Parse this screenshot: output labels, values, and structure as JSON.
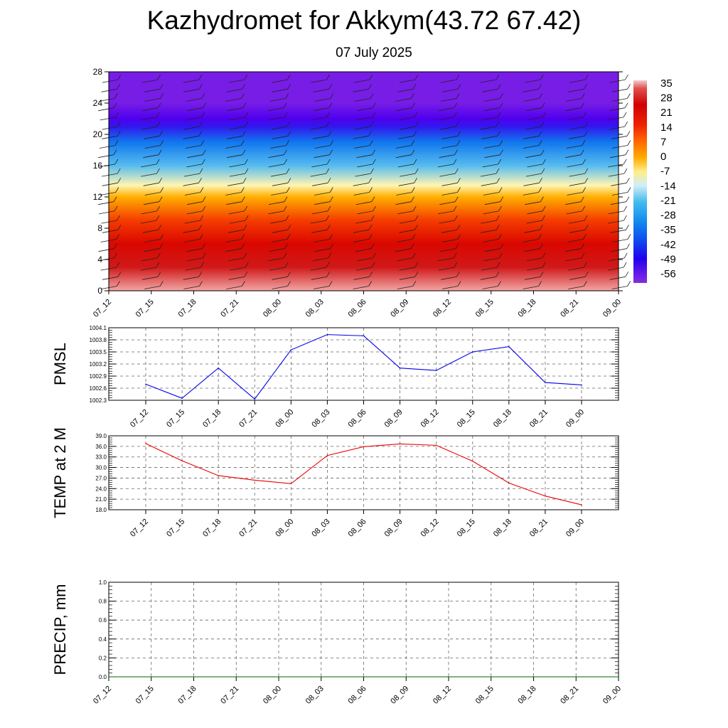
{
  "title": "Kazhydromet for Akkym(43.72 67.42)",
  "subtitle": "07 July 2025",
  "colors": {
    "pmsl_line": "#0000ee",
    "temp_line": "#ee0000",
    "precip_line": "#006400"
  },
  "chart_data": [
    {
      "type": "heatmap",
      "name": "vertical temperature/wind cross-section",
      "categories": [
        "07_12",
        "07_15",
        "07_18",
        "07_21",
        "08_00",
        "08_03",
        "08_06",
        "08_09",
        "08_12",
        "08_15",
        "08_18",
        "08_21",
        "09_00"
      ],
      "ylim": [
        0,
        28
      ],
      "yticks": [
        0,
        4,
        8,
        12,
        16,
        20,
        24,
        28
      ],
      "colorbar_ticks": [
        "35",
        "28",
        "21",
        "14",
        "7",
        "0",
        "-7",
        "-14",
        "-21",
        "-28",
        "-35",
        "-42",
        "-49",
        "-56"
      ],
      "colorbar_range": [
        -60,
        38
      ],
      "temperature_profile": [
        {
          "level": 0,
          "value": 36
        },
        {
          "level": 3,
          "value": 28
        },
        {
          "level": 6,
          "value": 22
        },
        {
          "level": 9,
          "value": 14
        },
        {
          "level": 12,
          "value": 2
        },
        {
          "level": 13.5,
          "value": -10
        },
        {
          "level": 16,
          "value": -24
        },
        {
          "level": 19,
          "value": -38
        },
        {
          "level": 21,
          "value": -52
        },
        {
          "level": 22,
          "value": -56
        },
        {
          "level": 24,
          "value": -60
        },
        {
          "level": 28,
          "value": -60
        }
      ],
      "wind_barbs": true
    },
    {
      "type": "line",
      "ylabel": "PMSL",
      "categories": [
        "07_12",
        "07_15",
        "07_18",
        "07_21",
        "08_00",
        "08_03",
        "08_06",
        "08_09",
        "08_12",
        "08_15",
        "08_18",
        "08_21",
        "09_00"
      ],
      "ylim": [
        1002.3,
        1004.1
      ],
      "yticks": [
        "1002.3",
        "1002.6",
        "1002.9",
        "1003.2",
        "1003.5",
        "1003.8",
        "1004.1"
      ],
      "values": [
        1002.7,
        1002.35,
        1003.1,
        1002.33,
        1003.55,
        1003.93,
        1003.9,
        1003.1,
        1003.04,
        1003.5,
        1003.63,
        1002.74,
        1002.68
      ]
    },
    {
      "type": "line",
      "ylabel": "TEMP at 2 M",
      "categories": [
        "07_12",
        "07_15",
        "07_18",
        "07_21",
        "08_00",
        "08_03",
        "08_06",
        "08_09",
        "08_12",
        "08_15",
        "08_18",
        "08_21",
        "09_00"
      ],
      "ylim": [
        18.0,
        39.0
      ],
      "yticks": [
        "18.0",
        "21.0",
        "24.0",
        "27.0",
        "30.0",
        "33.0",
        "36.0",
        "39.0"
      ],
      "values": [
        36.8,
        31.9,
        27.7,
        26.4,
        25.4,
        33.4,
        35.9,
        36.7,
        36.3,
        31.8,
        25.6,
        21.9,
        19.4
      ]
    },
    {
      "type": "line",
      "ylabel": "PRECIP, mm",
      "categories": [
        "07_12",
        "07_15",
        "07_18",
        "07_21",
        "08_00",
        "08_03",
        "08_06",
        "08_09",
        "08_12",
        "08_15",
        "08_18",
        "08_21",
        "09_00"
      ],
      "ylim": [
        0.0,
        1.0
      ],
      "yticks": [
        "0.0",
        "0.2",
        "0.4",
        "0.6",
        "0.8",
        "1.0"
      ],
      "values": [
        0,
        0,
        0,
        0,
        0,
        0,
        0,
        0,
        0,
        0,
        0,
        0,
        0
      ]
    }
  ]
}
